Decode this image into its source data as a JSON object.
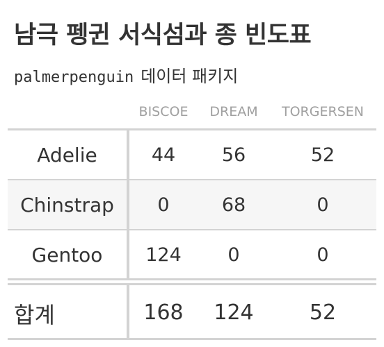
{
  "header": {
    "title": "남극 펭귄 서식섬과 종 빈도표",
    "subtitle_code": "palmerpenguin",
    "subtitle_rest": "데이터 패키지"
  },
  "columns": [
    "BISCOE",
    "DREAM",
    "TORGERSEN"
  ],
  "rows": [
    {
      "label": "Adelie",
      "values": [
        "44",
        "56",
        "52"
      ]
    },
    {
      "label": "Chinstrap",
      "values": [
        "0",
        "68",
        "0"
      ]
    },
    {
      "label": "Gentoo",
      "values": [
        "124",
        "0",
        "0"
      ]
    }
  ],
  "totals": {
    "label": "합계",
    "values": [
      "168",
      "124",
      "52"
    ]
  },
  "colors": {
    "text": "#333333",
    "column_header": "#a0a0a0",
    "rule": "#d3d3d3",
    "striped_row": "#f6f6f6"
  }
}
